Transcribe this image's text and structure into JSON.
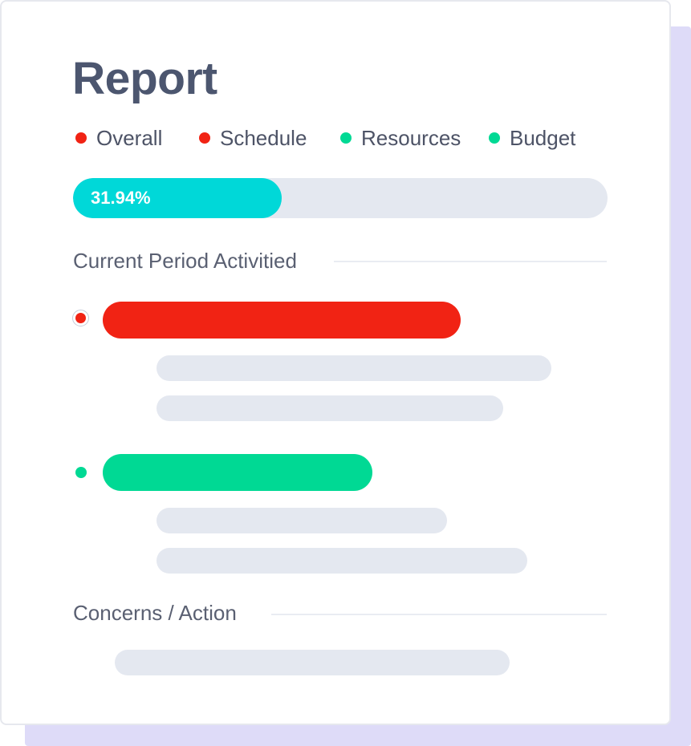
{
  "report": {
    "title": "Report",
    "legend": [
      {
        "label": "Overall",
        "color": "#f12314"
      },
      {
        "label": "Schedule",
        "color": "#f12314"
      },
      {
        "label": "Resources",
        "color": "#00d994"
      },
      {
        "label": "Budget",
        "color": "#00d994"
      }
    ],
    "progress": {
      "label": "31.94%",
      "value_percent": 31.94,
      "color": "#00d8d8"
    },
    "sections": {
      "current_period": "Current Period Activitied",
      "concerns": "Concerns / Action"
    },
    "activities": [
      {
        "status_color": "#f12314",
        "selected": true
      },
      {
        "status_color": "#00d994",
        "selected": false
      }
    ]
  }
}
